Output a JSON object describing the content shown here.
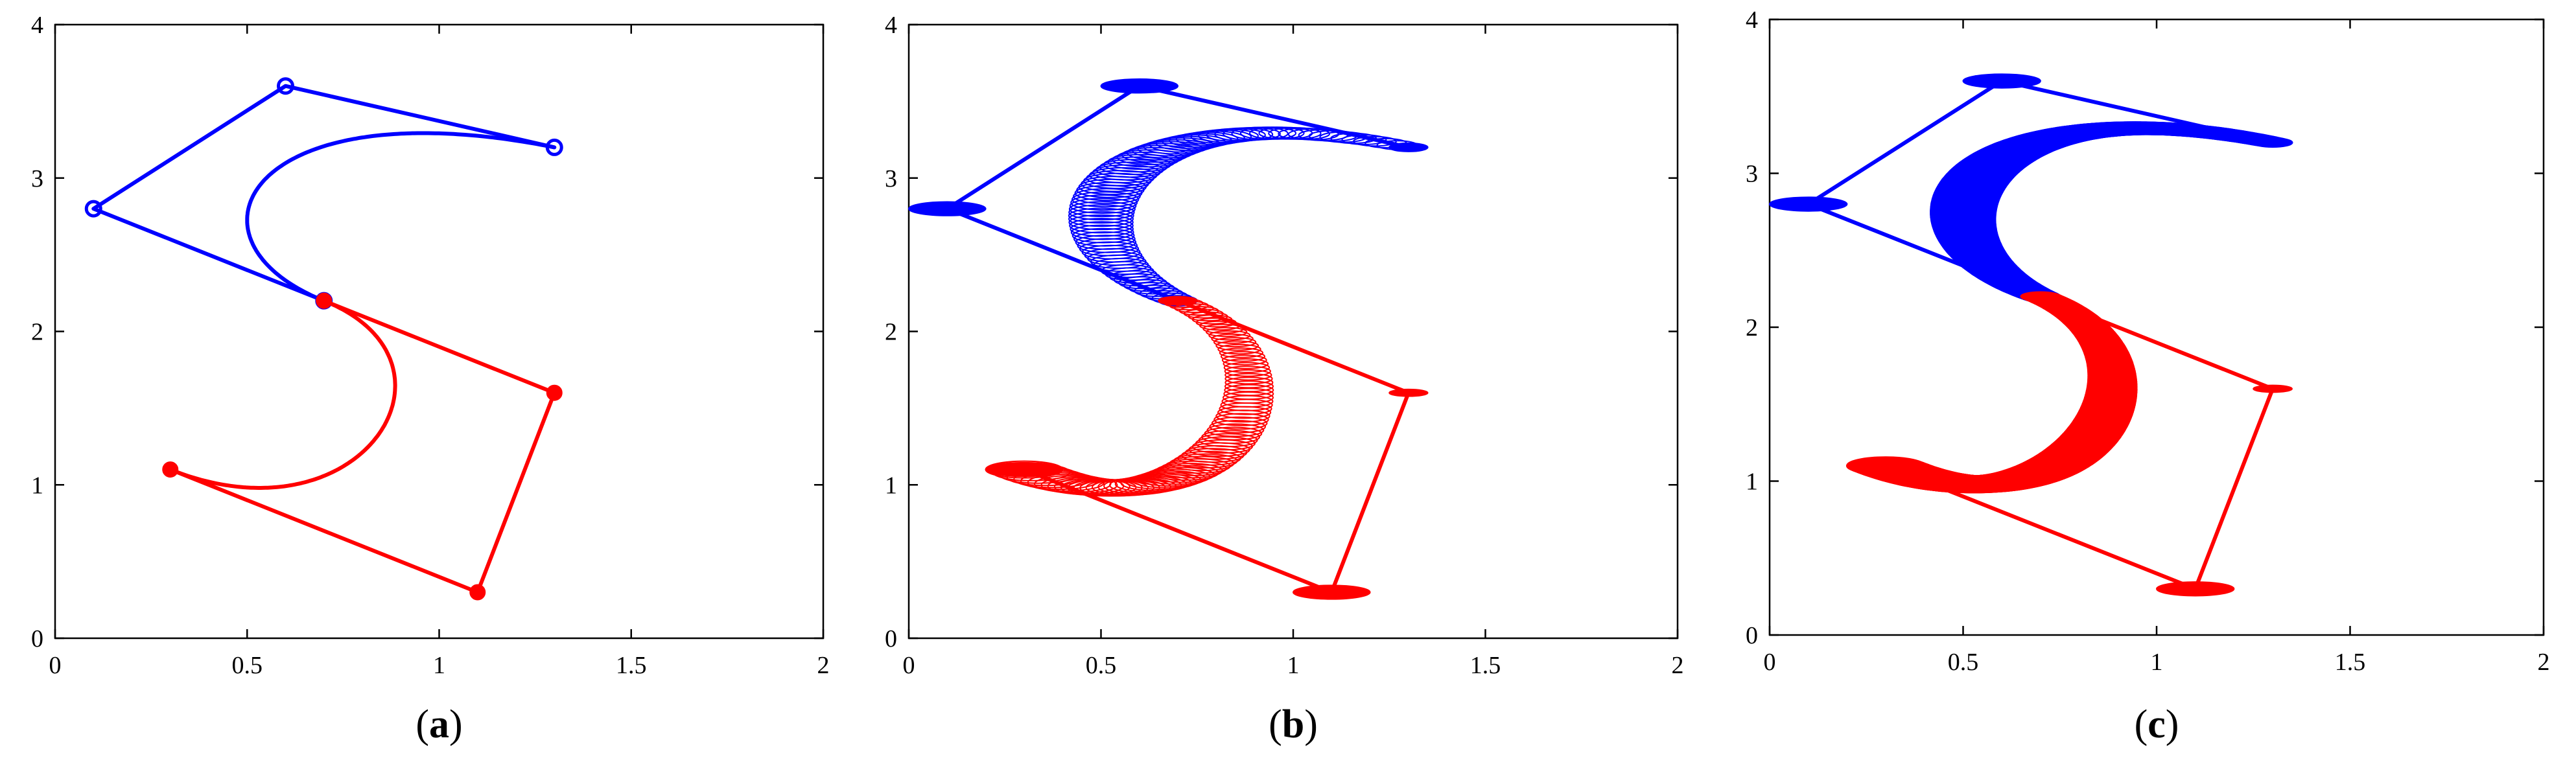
{
  "chart_data": [
    {
      "type": "line",
      "caption": {
        "open": "(",
        "letter": "a",
        "close": ")"
      },
      "style": "markers",
      "xlim": [
        0,
        2
      ],
      "ylim": [
        0,
        4
      ],
      "xticks": [
        "0",
        "0.5",
        "1",
        "1.5",
        "2"
      ],
      "yticks": [
        "0",
        "1",
        "2",
        "3",
        "4"
      ],
      "series": [
        {
          "color": "#0000ff",
          "control_polygon": [
            [
              0.7,
              2.2
            ],
            [
              0.1,
              2.8
            ],
            [
              0.6,
              3.6
            ],
            [
              1.3,
              3.2
            ]
          ],
          "curve_control_points": [
            [
              0.7,
              2.2
            ],
            [
              0.3,
              2.6
            ],
            [
              0.5,
              3.6
            ],
            [
              1.3,
              3.2
            ]
          ]
        },
        {
          "color": "#ff0000",
          "control_polygon": [
            [
              0.7,
              2.2
            ],
            [
              1.3,
              1.6
            ],
            [
              1.1,
              0.3
            ],
            [
              0.3,
              1.1
            ]
          ],
          "curve_control_points": [
            [
              0.7,
              2.2
            ],
            [
              1.1,
              1.8
            ],
            [
              0.8,
              0.6
            ],
            [
              0.3,
              1.1
            ]
          ]
        }
      ]
    },
    {
      "type": "line",
      "caption": {
        "open": "(",
        "letter": "b",
        "close": ")"
      },
      "style": "ellipses-outline",
      "xlim": [
        0,
        2
      ],
      "ylim": [
        0,
        4
      ],
      "xticks": [
        "0",
        "0.5",
        "1",
        "1.5",
        "2"
      ],
      "yticks": [
        "0",
        "1",
        "2",
        "3",
        "4"
      ],
      "series": [
        {
          "color": "#0000ff",
          "control_polygon": [
            [
              0.7,
              2.2
            ],
            [
              0.1,
              2.8
            ],
            [
              0.6,
              3.6
            ],
            [
              1.3,
              3.2
            ]
          ],
          "curve_control_points": [
            [
              0.7,
              2.2
            ],
            [
              0.3,
              2.6
            ],
            [
              0.5,
              3.6
            ],
            [
              1.3,
              3.2
            ]
          ],
          "radii": [
            [
              0.05,
              0.06
            ],
            [
              0.1,
              0.1
            ],
            [
              0.1,
              0.1
            ],
            [
              0.05,
              0.05
            ]
          ]
        },
        {
          "color": "#ff0000",
          "control_polygon": [
            [
              0.7,
              2.2
            ],
            [
              1.3,
              1.6
            ],
            [
              1.1,
              0.3
            ],
            [
              0.3,
              1.1
            ]
          ],
          "curve_control_points": [
            [
              0.7,
              2.2
            ],
            [
              1.1,
              1.8
            ],
            [
              0.8,
              0.6
            ],
            [
              0.3,
              1.1
            ]
          ],
          "radii": [
            [
              0.05,
              0.05
            ],
            [
              0.05,
              0.05
            ],
            [
              0.1,
              0.1
            ],
            [
              0.1,
              0.1
            ]
          ]
        }
      ]
    },
    {
      "type": "line",
      "caption": {
        "open": "(",
        "letter": "c",
        "close": ")"
      },
      "style": "ellipses-filled",
      "xlim": [
        0,
        2
      ],
      "ylim": [
        0,
        4
      ],
      "xticks": [
        "0",
        "0.5",
        "1",
        "1.5",
        "2"
      ],
      "yticks": [
        "0",
        "1",
        "2",
        "3",
        "4"
      ],
      "series": [
        {
          "color": "#0000ff",
          "control_polygon": [
            [
              0.7,
              2.2
            ],
            [
              0.1,
              2.8
            ],
            [
              0.6,
              3.6
            ],
            [
              1.3,
              3.2
            ]
          ],
          "curve_control_points": [
            [
              0.7,
              2.2
            ],
            [
              0.3,
              2.6
            ],
            [
              0.5,
              3.6
            ],
            [
              1.3,
              3.2
            ]
          ],
          "radii": [
            [
              0.05,
              0.06
            ],
            [
              0.1,
              0.1
            ],
            [
              0.1,
              0.1
            ],
            [
              0.05,
              0.05
            ]
          ]
        },
        {
          "color": "#ff0000",
          "control_polygon": [
            [
              0.7,
              2.2
            ],
            [
              1.3,
              1.6
            ],
            [
              1.1,
              0.3
            ],
            [
              0.3,
              1.1
            ]
          ],
          "curve_control_points": [
            [
              0.7,
              2.2
            ],
            [
              1.1,
              1.8
            ],
            [
              0.8,
              0.6
            ],
            [
              0.3,
              1.1
            ]
          ],
          "radii": [
            [
              0.05,
              0.05
            ],
            [
              0.05,
              0.05
            ],
            [
              0.1,
              0.1
            ],
            [
              0.1,
              0.1
            ]
          ]
        }
      ]
    }
  ]
}
